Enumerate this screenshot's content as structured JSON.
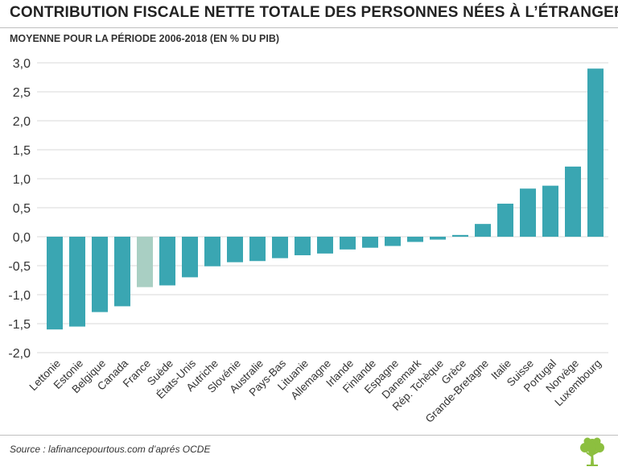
{
  "title": "CONTRIBUTION FISCALE NETTE TOTALE DES PERSONNES NÉES À L’ÉTRANGER",
  "subtitle": "MOYENNE POUR LA PÉRIODE 2006-2018 (EN % DU PIB)",
  "source": "Source : lafinancepourtous.com d’aprés OCDE",
  "colors": {
    "bar": "#3aa6b2",
    "highlight": "#a9cfc3",
    "grid": "#d9d9d9",
    "logo": "#8cbf3f"
  },
  "chart_data": {
    "type": "bar",
    "title": "CONTRIBUTION FISCALE NETTE TOTALE DES PERSONNES NÉES À L’ÉTRANGER",
    "subtitle": "MOYENNE POUR LA PÉRIODE 2006-2018 (EN % DU PIB)",
    "xlabel": "",
    "ylabel": "",
    "ylim": [
      -2.0,
      3.0
    ],
    "yticks": [
      "3,0",
      "2,5",
      "2,0",
      "1,5",
      "1,0",
      "0,5",
      "0,0",
      "-0,5",
      "-1,0",
      "-1,5",
      "-2,0"
    ],
    "ytick_values": [
      3.0,
      2.5,
      2.0,
      1.5,
      1.0,
      0.5,
      0.0,
      -0.5,
      -1.0,
      -1.5,
      -2.0
    ],
    "highlight": "France",
    "categories": [
      "Lettonie",
      "Estonie",
      "Belgique",
      "Canada",
      "France",
      "Suède",
      "États-Unis",
      "Autriche",
      "Slovénie",
      "Australie",
      "Pays-Bas",
      "Lituanie",
      "Allemagne",
      "Irlande",
      "Finlande",
      "Espagne",
      "Danemark",
      "Rép. Tchèque",
      "Grèce",
      "Grande-Bretagne",
      "Italie",
      "Suisse",
      "Portugal",
      "Norvège",
      "Luxembourg"
    ],
    "values": [
      -1.6,
      -1.55,
      -1.3,
      -1.2,
      -0.87,
      -0.84,
      -0.7,
      -0.51,
      -0.44,
      -0.42,
      -0.37,
      -0.32,
      -0.29,
      -0.22,
      -0.19,
      -0.16,
      -0.09,
      -0.05,
      0.03,
      0.22,
      0.57,
      0.83,
      0.88,
      1.21,
      2.9
    ]
  }
}
